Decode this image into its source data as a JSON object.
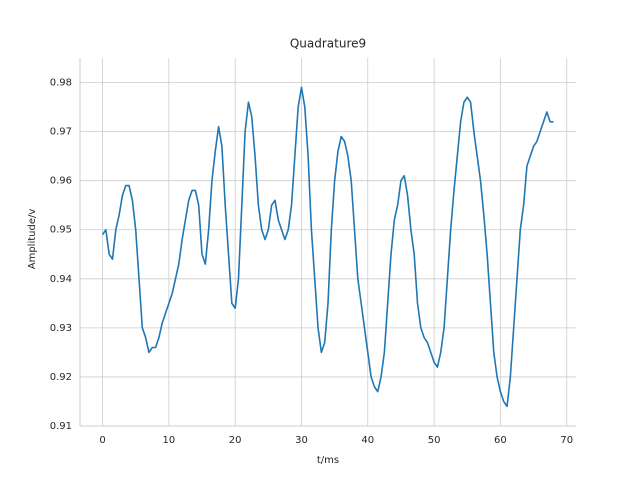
{
  "chart_data": {
    "type": "line",
    "title": "Quadrature9",
    "xlabel": "t/ms",
    "ylabel": "Amplitude/v",
    "x": [
      0,
      0.5,
      1,
      1.5,
      2,
      2.5,
      3,
      3.5,
      4,
      4.5,
      5,
      5.5,
      6,
      6.5,
      7,
      7.5,
      8,
      8.5,
      9,
      9.5,
      10,
      10.5,
      11,
      11.5,
      12,
      12.5,
      13,
      13.5,
      14,
      14.5,
      15,
      15.5,
      16,
      16.5,
      17,
      17.5,
      18,
      18.5,
      19,
      19.5,
      20,
      20.5,
      21,
      21.5,
      22,
      22.5,
      23,
      23.5,
      24,
      24.5,
      25,
      25.5,
      26,
      26.5,
      27,
      27.5,
      28,
      28.5,
      29,
      29.5,
      30,
      30.5,
      31,
      31.5,
      32,
      32.5,
      33,
      33.5,
      34,
      34.5,
      35,
      35.5,
      36,
      36.5,
      37,
      37.5,
      38,
      38.5,
      39,
      39.5,
      40,
      40.5,
      41,
      41.5,
      42,
      42.5,
      43,
      43.5,
      44,
      44.5,
      45,
      45.5,
      46,
      46.5,
      47,
      47.5,
      48,
      48.5,
      49,
      49.5,
      50,
      50.5,
      51,
      51.5,
      52,
      52.5,
      53,
      53.5,
      54,
      54.5,
      55,
      55.5,
      56,
      56.5,
      57,
      57.5,
      58,
      58.5,
      59,
      59.5,
      60,
      60.5,
      61,
      61.5,
      62,
      62.5,
      63,
      63.5,
      64,
      64.5,
      65,
      65.5,
      66,
      66.5,
      67,
      67.5,
      68
    ],
    "series": [
      {
        "color": "#1f77b4",
        "values": [
          0.949,
          0.95,
          0.945,
          0.944,
          0.95,
          0.953,
          0.957,
          0.959,
          0.959,
          0.956,
          0.95,
          0.94,
          0.93,
          0.928,
          0.925,
          0.926,
          0.926,
          0.928,
          0.931,
          0.933,
          0.935,
          0.937,
          0.94,
          0.943,
          0.948,
          0.952,
          0.956,
          0.958,
          0.958,
          0.955,
          0.945,
          0.943,
          0.95,
          0.96,
          0.966,
          0.971,
          0.967,
          0.955,
          0.945,
          0.935,
          0.934,
          0.94,
          0.955,
          0.97,
          0.976,
          0.973,
          0.965,
          0.955,
          0.95,
          0.948,
          0.95,
          0.955,
          0.956,
          0.952,
          0.95,
          0.948,
          0.95,
          0.955,
          0.965,
          0.975,
          0.979,
          0.975,
          0.965,
          0.95,
          0.94,
          0.93,
          0.925,
          0.927,
          0.935,
          0.95,
          0.96,
          0.966,
          0.969,
          0.968,
          0.965,
          0.96,
          0.95,
          0.94,
          0.935,
          0.93,
          0.925,
          0.92,
          0.918,
          0.917,
          0.92,
          0.925,
          0.935,
          0.945,
          0.952,
          0.955,
          0.96,
          0.961,
          0.957,
          0.95,
          0.945,
          0.935,
          0.93,
          0.928,
          0.927,
          0.925,
          0.923,
          0.922,
          0.925,
          0.93,
          0.94,
          0.95,
          0.958,
          0.965,
          0.972,
          0.976,
          0.977,
          0.976,
          0.97,
          0.965,
          0.96,
          0.953,
          0.945,
          0.935,
          0.925,
          0.92,
          0.917,
          0.915,
          0.914,
          0.92,
          0.93,
          0.94,
          0.95,
          0.955,
          0.963,
          0.965,
          0.967,
          0.968,
          0.97,
          0.972,
          0.974,
          0.972,
          0.972
        ]
      }
    ],
    "xlim": [
      -3.4,
      71.4
    ],
    "ylim": [
      0.91,
      0.985
    ],
    "xticks": [
      0,
      10,
      20,
      30,
      40,
      50,
      60,
      70
    ],
    "yticks": [
      0.91,
      0.92,
      0.93,
      0.94,
      0.95,
      0.96,
      0.97,
      0.98
    ],
    "grid": true
  }
}
